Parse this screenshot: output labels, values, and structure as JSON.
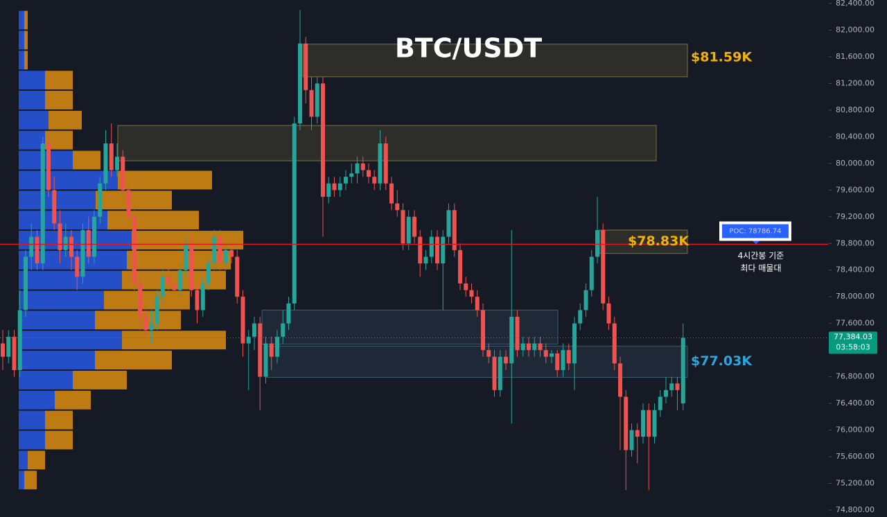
{
  "chart_data": {
    "type": "candlestick",
    "title": "BTC/USDT",
    "ylim": [
      74696,
      82452
    ],
    "yticks": [
      {
        "value": 82400,
        "label": "82,400.00"
      },
      {
        "value": 82000,
        "label": "82,000.00"
      },
      {
        "value": 81600,
        "label": "81,600.00"
      },
      {
        "value": 81200,
        "label": "81,200.00"
      },
      {
        "value": 80800,
        "label": "80,800.00"
      },
      {
        "value": 80400,
        "label": "80,400.00"
      },
      {
        "value": 80000,
        "label": "80,000.00"
      },
      {
        "value": 79600,
        "label": "79,600.00"
      },
      {
        "value": 79200,
        "label": "79,200.00"
      },
      {
        "value": 78800,
        "label": "78,800.00"
      },
      {
        "value": 78400,
        "label": "78,400.00"
      },
      {
        "value": 78000,
        "label": "78,000.00"
      },
      {
        "value": 77600,
        "label": "77,600.00"
      },
      {
        "value": 77200,
        "label": "77,200.00"
      },
      {
        "value": 76800,
        "label": "76,800.00"
      },
      {
        "value": 76400,
        "label": "76,400.00"
      },
      {
        "value": 76000,
        "label": "76,000.00"
      },
      {
        "value": 75600,
        "label": "75,600.00"
      },
      {
        "value": 75200,
        "label": "75,200.00"
      },
      {
        "value": 74800,
        "label": "74,800.00"
      }
    ],
    "up_color": "#26a69a",
    "down_color": "#ef5350",
    "ohlc": [
      [
        77300,
        77500,
        76900,
        77100
      ],
      [
        77100,
        77500,
        77000,
        77400
      ],
      [
        77400,
        77500,
        76800,
        76900
      ],
      [
        76900,
        78100,
        76800,
        77800
      ],
      [
        77800,
        78700,
        77700,
        78600
      ],
      [
        78600,
        79100,
        78400,
        78900
      ],
      [
        78900,
        79000,
        78400,
        78500
      ],
      [
        78500,
        80400,
        78400,
        80300
      ],
      [
        80300,
        80400,
        79500,
        79600
      ],
      [
        79600,
        79800,
        79000,
        79100
      ],
      [
        79100,
        79300,
        78500,
        78700
      ],
      [
        78700,
        79100,
        78600,
        78900
      ],
      [
        78900,
        79000,
        78400,
        78600
      ],
      [
        78600,
        78700,
        78100,
        78300
      ],
      [
        78300,
        79100,
        78200,
        79000
      ],
      [
        79000,
        79200,
        78500,
        78600
      ],
      [
        78600,
        79300,
        78500,
        79200
      ],
      [
        79200,
        79800,
        79100,
        79700
      ],
      [
        79700,
        80500,
        79600,
        80300
      ],
      [
        80300,
        80600,
        79800,
        79900
      ],
      [
        79900,
        80300,
        79800,
        80100
      ],
      [
        80100,
        80200,
        79500,
        79600
      ],
      [
        79600,
        79700,
        79100,
        79200
      ],
      [
        79200,
        79300,
        78100,
        78200
      ],
      [
        78200,
        78300,
        77500,
        77700
      ],
      [
        77700,
        77800,
        77400,
        77500
      ],
      [
        77500,
        77800,
        77300,
        77600
      ],
      [
        77600,
        78100,
        77500,
        78000
      ],
      [
        78000,
        78400,
        77900,
        78300
      ],
      [
        78300,
        78500,
        78100,
        78200
      ],
      [
        78200,
        78300,
        77900,
        78100
      ],
      [
        78100,
        78500,
        78000,
        78400
      ],
      [
        78400,
        78900,
        78300,
        78800
      ],
      [
        78800,
        78900,
        78000,
        78100
      ],
      [
        78100,
        78200,
        77600,
        77800
      ],
      [
        77800,
        78300,
        77700,
        78200
      ],
      [
        78200,
        78600,
        78100,
        78500
      ],
      [
        78500,
        79000,
        78400,
        78900
      ],
      [
        78900,
        79000,
        78400,
        78500
      ],
      [
        78500,
        78800,
        78400,
        78700
      ],
      [
        78700,
        78800,
        78500,
        78600
      ],
      [
        78600,
        78700,
        77900,
        78000
      ],
      [
        78000,
        78100,
        77100,
        77300
      ],
      [
        77300,
        77500,
        76600,
        77400
      ],
      [
        77400,
        77700,
        77200,
        77600
      ],
      [
        77600,
        77700,
        76300,
        76800
      ],
      [
        76800,
        77400,
        76700,
        77300
      ],
      [
        77300,
        77400,
        76900,
        77100
      ],
      [
        77100,
        77500,
        77000,
        77400
      ],
      [
        77400,
        77800,
        77300,
        77600
      ],
      [
        77600,
        78000,
        77500,
        77900
      ],
      [
        77900,
        80700,
        77800,
        80600
      ],
      [
        80600,
        82300,
        80500,
        81800
      ],
      [
        81800,
        81900,
        80900,
        81100
      ],
      [
        81100,
        81300,
        80500,
        80700
      ],
      [
        80700,
        81300,
        80600,
        81200
      ],
      [
        81200,
        81300,
        78900,
        79500
      ],
      [
        79500,
        79800,
        79400,
        79700
      ],
      [
        79700,
        79800,
        79500,
        79600
      ],
      [
        79600,
        79800,
        79500,
        79700
      ],
      [
        79700,
        79900,
        79600,
        79800
      ],
      [
        79800,
        80000,
        79700,
        79850
      ],
      [
        79850,
        80100,
        79700,
        80000
      ],
      [
        80000,
        80100,
        79800,
        79900
      ],
      [
        79900,
        80000,
        79700,
        79800
      ],
      [
        79800,
        79900,
        79600,
        79700
      ],
      [
        79700,
        80500,
        79600,
        80300
      ],
      [
        80300,
        80400,
        79600,
        79700
      ],
      [
        79700,
        79800,
        79300,
        79400
      ],
      [
        79400,
        79600,
        79200,
        79300
      ],
      [
        79300,
        79400,
        78700,
        78800
      ],
      [
        78800,
        79300,
        78700,
        79200
      ],
      [
        79200,
        79300,
        78800,
        78900
      ],
      [
        78900,
        79000,
        78300,
        78500
      ],
      [
        78500,
        78700,
        78400,
        78600
      ],
      [
        78600,
        79000,
        78500,
        78900
      ],
      [
        78900,
        79000,
        78400,
        78500
      ],
      [
        78500,
        79000,
        77800,
        78900
      ],
      [
        78900,
        79400,
        78800,
        79300
      ],
      [
        79300,
        79400,
        78600,
        78700
      ],
      [
        78700,
        78800,
        78100,
        78200
      ],
      [
        78200,
        78300,
        78000,
        78100
      ],
      [
        78100,
        78200,
        77900,
        78000
      ],
      [
        78000,
        78100,
        77700,
        77800
      ],
      [
        77800,
        77900,
        77100,
        77200
      ],
      [
        77200,
        77300,
        77000,
        77100
      ],
      [
        77100,
        77200,
        76500,
        76600
      ],
      [
        76600,
        77200,
        76500,
        77100
      ],
      [
        77100,
        77200,
        76900,
        77000
      ],
      [
        77000,
        79000,
        76100,
        77700
      ],
      [
        77700,
        77800,
        77100,
        77200
      ],
      [
        77200,
        77400,
        77100,
        77300
      ],
      [
        77300,
        77400,
        77100,
        77200
      ],
      [
        77200,
        77400,
        77100,
        77300
      ],
      [
        77300,
        77400,
        77100,
        77200
      ],
      [
        77200,
        77300,
        77000,
        77100
      ],
      [
        77100,
        77200,
        77000,
        77150
      ],
      [
        77150,
        77200,
        76800,
        76900
      ],
      [
        76900,
        77300,
        76800,
        77200
      ],
      [
        77200,
        77300,
        76900,
        77000
      ],
      [
        77000,
        77700,
        76600,
        77600
      ],
      [
        77600,
        77900,
        77500,
        77800
      ],
      [
        77800,
        78200,
        77700,
        78100
      ],
      [
        78100,
        78700,
        78000,
        78600
      ],
      [
        78600,
        79500,
        78500,
        79000
      ],
      [
        79000,
        79100,
        77800,
        77900
      ],
      [
        77900,
        78000,
        77500,
        77600
      ],
      [
        77600,
        77700,
        76900,
        77000
      ],
      [
        77000,
        77100,
        75700,
        76500
      ],
      [
        76500,
        76600,
        75100,
        75700
      ],
      [
        75700,
        76100,
        75600,
        76000
      ],
      [
        76000,
        76100,
        75500,
        75900
      ],
      [
        75900,
        76400,
        75800,
        76300
      ],
      [
        76300,
        76400,
        75100,
        75900
      ],
      [
        75900,
        76400,
        75800,
        76300
      ],
      [
        76300,
        76600,
        76200,
        76500
      ],
      [
        76500,
        76800,
        76400,
        76600
      ],
      [
        76600,
        76800,
        76500,
        76700
      ],
      [
        76700,
        76800,
        76300,
        76600
      ],
      [
        76400,
        77600,
        76300,
        77384.03
      ]
    ],
    "profile_bins": [
      82300,
      82000,
      81700,
      81400,
      81100,
      80800,
      80500,
      80200,
      79900,
      79600,
      79300,
      79000,
      78700,
      78400,
      78100,
      77800,
      77500,
      77200,
      76900,
      76600,
      76300,
      76000,
      75700,
      75400,
      75100
    ],
    "profile_buy": [
      8,
      8,
      8,
      38,
      38,
      43,
      38,
      78,
      143,
      111,
      128,
      163,
      156,
      149,
      123,
      110,
      149,
      110,
      78,
      52,
      38,
      38,
      13,
      8
    ],
    "profile_sell": [
      5,
      5,
      5,
      40,
      40,
      48,
      40,
      40,
      136,
      110,
      132,
      161,
      150,
      150,
      124,
      124,
      150,
      111,
      78,
      52,
      40,
      40,
      25,
      18
    ],
    "profile_buy_color": "#2962ff",
    "profile_sell_color": "#e8940f",
    "zones": [
      {
        "low": 81300,
        "high": 81790,
        "color": "#c8b450"
      },
      {
        "low": 80040,
        "high": 80570,
        "color": "#c8b450"
      },
      {
        "low": 78650,
        "high": 79000,
        "color": "#c8b450"
      },
      {
        "low": 77290,
        "high": 77800,
        "color": "#5a8caa"
      },
      {
        "low": 76790,
        "high": 77260,
        "color": "#5a8caa"
      }
    ],
    "annotations": [
      {
        "text": "$81.59K",
        "value": 81590,
        "color": "#f5b301"
      },
      {
        "text": "$78.83K",
        "value": 78830,
        "color": "#f5b301"
      },
      {
        "text": "$77.03K",
        "value": 77030,
        "color": "#29a8e0"
      }
    ],
    "poc": {
      "value": 78786.74,
      "label": "POC: 78786.74",
      "color": "#e0161b",
      "note": [
        "4시간봉 기준",
        "최다 매물대"
      ]
    },
    "last_price": {
      "value": 77384.03,
      "label": "77,384.03",
      "countdown": "03:58:03",
      "color": "#089981"
    }
  }
}
